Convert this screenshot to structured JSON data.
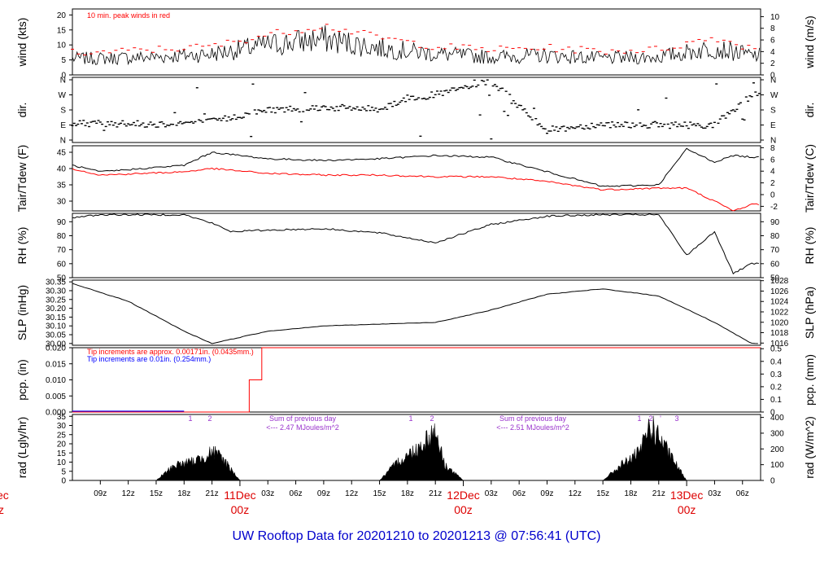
{
  "title": "UW Rooftop Data for 20201210  to  20201213 @ 07:56:41  (UTC)",
  "colors": {
    "title": "#0000cc",
    "peak": "#ff0000",
    "dew": "#ff0000",
    "day_label": "#dd0000",
    "solar_text": "#9933cc",
    "rain_blue": "#0000ff"
  },
  "x_axis": {
    "ticks": [
      "09z",
      "12z",
      "15z",
      "18z",
      "21z",
      "03z",
      "06z",
      "09z",
      "12z",
      "15z",
      "18z",
      "21z",
      "03z",
      "06z",
      "09z",
      "12z",
      "15z",
      "18z",
      "21z",
      "03z",
      "06z"
    ],
    "day_labels": [
      {
        "day": "11Dec",
        "time": "00z"
      },
      {
        "day": "12Dec",
        "time": "00z"
      },
      {
        "day": "13Dec",
        "time": "00z"
      }
    ],
    "left_cut_labels": [
      "ec",
      "z"
    ]
  },
  "panels": {
    "wind": {
      "left_label": "wind (kts)",
      "right_label": "wind (m/s)",
      "left_ticks": [
        "0",
        "5",
        "10",
        "15",
        "20"
      ],
      "right_ticks": [
        "0",
        "2",
        "4",
        "6",
        "8",
        "10"
      ],
      "note": "10 min. peak winds in red"
    },
    "dir": {
      "left_label": "dir.",
      "right_label": "dir.",
      "ticks": [
        "N",
        "E",
        "S",
        "W",
        "N"
      ]
    },
    "temp": {
      "left_label": "Tair/Tdew (F)",
      "right_label": "Tair/Tdew (C)",
      "left_ticks": [
        "30",
        "35",
        "40",
        "45"
      ],
      "right_ticks": [
        "-2",
        "0",
        "2",
        "4",
        "6",
        "8"
      ]
    },
    "rh": {
      "left_label": "RH (%)",
      "right_label": "RH (%)",
      "ticks": [
        "50",
        "60",
        "70",
        "80",
        "90"
      ]
    },
    "slp": {
      "left_label": "SLP (inHg)",
      "right_label": "SLP (hPa)",
      "left_ticks": [
        "30.00",
        "30.05",
        "30.10",
        "30.15",
        "30.20",
        "30.25",
        "30.30",
        "30.35"
      ],
      "right_ticks": [
        "1016",
        "1018",
        "1020",
        "1022",
        "1024",
        "1026",
        "1028"
      ]
    },
    "pcp": {
      "left_label": "pcp. (in)",
      "right_label": "pcp. (mm)",
      "left_ticks": [
        "0.000",
        "0.005",
        "0.010",
        "0.015",
        "0.020"
      ],
      "right_ticks": [
        "0",
        "0.1",
        "0.2",
        "0.3",
        "0.4",
        "0.5"
      ],
      "note_red": "Tip increments are approx. 0.00171in. (0.0435mm.)",
      "note_blue": "Tip increments are 0.01in. (0.254mm.)"
    },
    "rad": {
      "left_label": "rad (Lgly/hr)",
      "right_label": "rad (W/m^2)",
      "left_ticks": [
        "0",
        "5",
        "10",
        "15",
        "20",
        "25",
        "30",
        "35"
      ],
      "right_ticks": [
        "0",
        "100",
        "200",
        "300",
        "400"
      ],
      "sum1_a": "Sum of previous day",
      "sum1_b": "<--- 2.47 MJoules/m^2",
      "sum2_a": "Sum of previous day",
      "sum2_b": "<--- 2.51 MJoules/m^2",
      "markers_1": [
        "1",
        "2"
      ],
      "markers_2": [
        "1",
        "2"
      ],
      "markers_3": [
        "1",
        "2",
        "'",
        "3",
        "4"
      ]
    }
  },
  "chart_data": [
    {
      "type": "line",
      "title": "",
      "xlabel": "",
      "ylabel": "wind (kts)",
      "ylim": [
        0,
        22
      ],
      "x": [
        "10 09z",
        "10 15z",
        "10 21z",
        "11 03z",
        "11 09z",
        "11 15z",
        "11 21z",
        "12 03z",
        "12 09z",
        "12 15z",
        "12 21z",
        "13 03z",
        "13 07z"
      ],
      "series": [
        {
          "values": [
            5.5,
            6,
            7,
            10,
            12,
            9,
            7,
            6,
            6.5,
            5.5,
            6,
            9,
            6.5
          ]
        },
        {
          "values": [
            7,
            8,
            9,
            13,
            16,
            12,
            9,
            8,
            8.5,
            7.5,
            8,
            12,
            8.5
          ]
        }
      ]
    },
    {
      "type": "scatter",
      "title": "",
      "ylabel": "dir.",
      "categories": [
        "N",
        "E",
        "S",
        "W",
        "N"
      ],
      "x": [
        "10 09z",
        "10 15z",
        "10 21z",
        "11 03z",
        "11 09z",
        "11 15z",
        "11 18z",
        "11 21z",
        "12 03z",
        "12 09z",
        "12 15z",
        "12 21z",
        "13 03z",
        "13 07z"
      ],
      "values": [
        100,
        95,
        110,
        180,
        195,
        185,
        250,
        270,
        350,
        60,
        95,
        90,
        90,
        270
      ]
    },
    {
      "type": "line",
      "title": "",
      "ylabel": "Tair/Tdew (F)",
      "ylim": [
        27,
        47
      ],
      "x": [
        "10 06z",
        "10 09z",
        "10 18z",
        "10 21z",
        "11 03z",
        "11 09z",
        "11 15z",
        "11 21z",
        "12 03z",
        "12 09z",
        "12 15z",
        "12 21z",
        "13 00z",
        "13 03z",
        "13 05z",
        "13 07z"
      ],
      "series": [
        {
          "values": [
            41,
            39,
            41,
            45,
            43,
            42.5,
            43,
            44,
            43.5,
            39,
            34.5,
            35,
            46,
            42,
            44,
            43.5
          ]
        },
        {
          "values": [
            40,
            38,
            39,
            40,
            38.5,
            38,
            38,
            37.5,
            37.5,
            36,
            33.5,
            34,
            34,
            30,
            27,
            29
          ]
        }
      ]
    },
    {
      "type": "line",
      "title": "",
      "ylabel": "RH (%)",
      "ylim": [
        50,
        96
      ],
      "x": [
        "10 06z",
        "10 09z",
        "10 18z",
        "10 21z",
        "10 23z",
        "11 03z",
        "11 09z",
        "11 15z",
        "11 21z",
        "12 03z",
        "12 09z",
        "12 15z",
        "12 21z",
        "13 00z",
        "13 03z",
        "13 05z",
        "13 07z"
      ],
      "series": [
        {
          "values": [
            93,
            95,
            95,
            89,
            83,
            84,
            85,
            82,
            75,
            88,
            94,
            95,
            95,
            66,
            83,
            53,
            60
          ]
        }
      ]
    },
    {
      "type": "line",
      "title": "",
      "ylabel": "SLP (inHg)",
      "ylim": [
        29.99,
        30.36
      ],
      "x": [
        "10 06z",
        "10 12z",
        "10 18z",
        "10 21z",
        "11 03z",
        "11 09z",
        "11 15z",
        "11 21z",
        "12 03z",
        "12 09z",
        "12 15z",
        "12 21z",
        "13 03z",
        "13 07z"
      ],
      "series": [
        {
          "values": [
            30.34,
            30.24,
            30.07,
            30.0,
            30.07,
            30.1,
            30.11,
            30.12,
            30.19,
            30.28,
            30.31,
            30.27,
            30.12,
            30.0
          ]
        }
      ]
    },
    {
      "type": "line",
      "title": "",
      "ylabel": "pcp. (in)",
      "ylim": [
        0,
        0.02
      ],
      "x": [
        "10 06z",
        "11 01z",
        "11 02z",
        "11 03z",
        "13 07z"
      ],
      "series": [
        {
          "values": [
            0,
            0,
            0.01,
            0.02,
            0.02
          ]
        }
      ]
    },
    {
      "type": "area",
      "title": "",
      "ylabel": "rad (Lgly/hr)",
      "ylim": [
        0,
        35
      ],
      "x": [
        "10 15z",
        "10 17z",
        "10 19z",
        "10 21z",
        "10 22z",
        "11 00z",
        "11 15z",
        "11 17z",
        "11 19z",
        "11 21z",
        "11 22z",
        "12 00z",
        "12 15z",
        "12 17z",
        "12 19z",
        "12 20z",
        "12 21z",
        "12 22z",
        "13 00z"
      ],
      "series": [
        {
          "values": [
            0,
            10,
            12,
            18,
            15,
            0,
            0,
            12,
            20,
            32,
            10,
            0,
            0,
            10,
            18,
            35,
            28,
            18,
            0
          ]
        }
      ]
    }
  ]
}
